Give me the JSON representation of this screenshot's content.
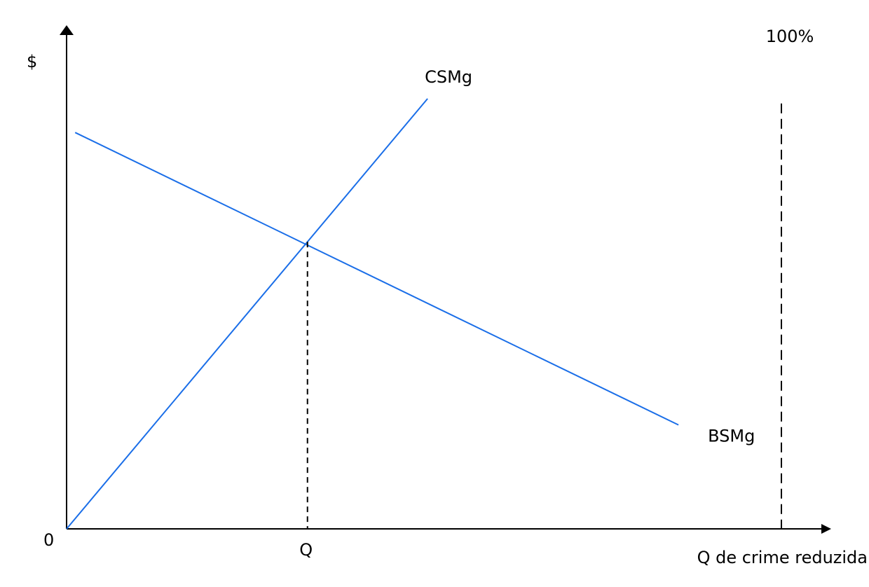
{
  "chart_data": {
    "type": "line",
    "title": "",
    "ylabel": "$",
    "xlabel": "Q de crime reduzida",
    "origin_label": "0",
    "x_range": [
      0,
      100
    ],
    "y_range": [
      0,
      100
    ],
    "grid": false,
    "colors": {
      "curve": "#1a6ee8",
      "axis": "#000000",
      "guide": "#000000"
    },
    "series": [
      {
        "name": "CSMg",
        "points": [
          {
            "x": 0,
            "y": 0
          },
          {
            "x": 50.5,
            "y": 89
          }
        ]
      },
      {
        "name": "BSMg",
        "points": [
          {
            "x": 1.2,
            "y": 82
          },
          {
            "x": 85.6,
            "y": 21.5
          }
        ]
      }
    ],
    "equilibrium": {
      "label": "Q",
      "x": 33.7,
      "y": 59.4
    },
    "vertical_limit": {
      "label": "100%",
      "x": 100,
      "y_top": 88
    }
  }
}
